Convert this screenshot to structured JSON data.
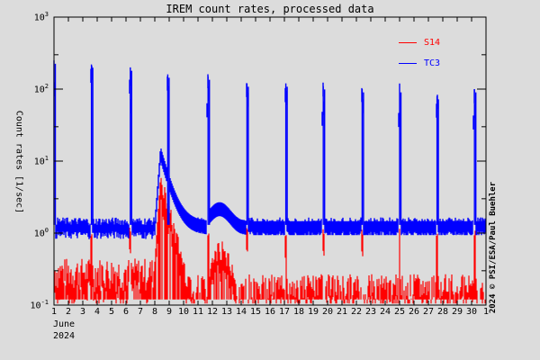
{
  "chart_data": {
    "type": "line",
    "title": "IREM count rates, processed data",
    "xlabel": "June 2024",
    "ylabel": "Count rates [1/sec]",
    "yscale": "log",
    "ylim": [
      0.1,
      1000
    ],
    "xlim": [
      1,
      31
    ],
    "x_tick_labels": [
      "1",
      "2",
      "3",
      "4",
      "5",
      "6",
      "7",
      "8",
      "9",
      "10",
      "11",
      "12",
      "13",
      "14",
      "15",
      "16",
      "17",
      "18",
      "19",
      "20",
      "21",
      "22",
      "23",
      "24",
      "25",
      "26",
      "27",
      "28",
      "29",
      "30",
      "1"
    ],
    "y_tick_labels": [
      "10^3",
      "10^2",
      "10^1",
      "10^0",
      "10^-1"
    ],
    "legend": [
      {
        "name": "S14",
        "color": "#ff0000"
      },
      {
        "name": "TC3",
        "color": "#0000ff"
      }
    ],
    "legend_position": "upper right",
    "grid": false,
    "series": [
      {
        "name": "TC3",
        "color": "#0000ff",
        "baseline": 1.2,
        "spike_days": [
          1.0,
          3.6,
          6.3,
          8.9,
          11.7,
          14.4,
          17.1,
          19.7,
          22.4,
          25.0,
          27.6,
          30.2
        ],
        "spike_peaks": [
          250,
          220,
          200,
          160,
          150,
          120,
          120,
          110,
          100,
          100,
          80,
          100
        ],
        "event": {
          "start_day": 8.0,
          "peak_day": 8.4,
          "peak": 13,
          "decay_to_day": 11.5,
          "secondary_bump_day": 12.5,
          "secondary_peak": 2.2
        }
      },
      {
        "name": "S14",
        "color": "#ff0000",
        "baseline_range": [
          0.15,
          0.45
        ],
        "event": {
          "start_day": 8.0,
          "peak_day": 8.4,
          "peak": 6,
          "decay_to_day": 11.5,
          "secondary_bump_day": 12.5,
          "secondary_peak": 0.7
        }
      }
    ]
  },
  "page": {
    "title": "IREM count rates, processed data",
    "ylabel": "Count rates [1/sec]",
    "month": "June",
    "year": "2024",
    "credit": "2024 © PSI/ESA/Paul Buehler",
    "legend": {
      "s14": "S14",
      "tc3": "TC3"
    },
    "yticks": [
      {
        "base": "10",
        "exp": "3"
      },
      {
        "base": "10",
        "exp": "2"
      },
      {
        "base": "10",
        "exp": "1"
      },
      {
        "base": "10",
        "exp": "0"
      },
      {
        "base": "10",
        "exp": "-1"
      }
    ],
    "xticks": [
      "1",
      "2",
      "3",
      "4",
      "5",
      "6",
      "7",
      "8",
      "9",
      "10",
      "11",
      "12",
      "13",
      "14",
      "15",
      "16",
      "17",
      "18",
      "19",
      "20",
      "21",
      "22",
      "23",
      "24",
      "25",
      "26",
      "27",
      "28",
      "29",
      "30",
      "1"
    ]
  }
}
